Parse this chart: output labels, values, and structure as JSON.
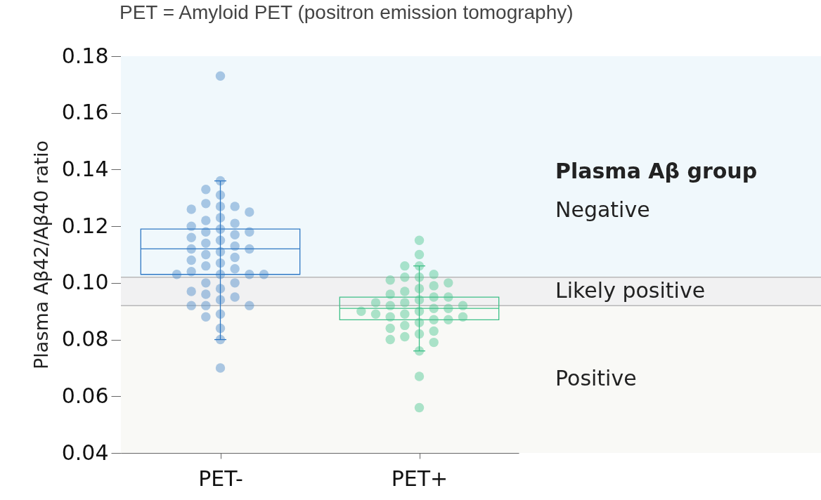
{
  "chart_data": {
    "type": "box",
    "title": "PET = Amyloid PET (positron emission tomography)",
    "ylabel": "Plasma Aβ42/Aβ40 ratio",
    "categories": [
      "PET-",
      "PET+"
    ],
    "colors": [
      "#2f78c4",
      "#3dbf87"
    ],
    "boxes": [
      {
        "low": 0.08,
        "q1": 0.103,
        "median": 0.112,
        "q3": 0.119,
        "high": 0.136
      },
      {
        "low": 0.076,
        "q1": 0.087,
        "median": 0.091,
        "q3": 0.095,
        "high": 0.106
      }
    ],
    "series": [
      {
        "type": "scatter",
        "color": "#5b93cc",
        "x": [
          "PET-",
          "PET-",
          "PET-",
          "PET-",
          "PET-",
          "PET-",
          "PET-",
          "PET-",
          "PET-",
          "PET-",
          "PET-",
          "PET-",
          "PET-",
          "PET-",
          "PET-",
          "PET-",
          "PET-",
          "PET-",
          "PET-",
          "PET-",
          "PET-",
          "PET-",
          "PET-",
          "PET-",
          "PET-",
          "PET-",
          "PET-",
          "PET-",
          "PET-",
          "PET-",
          "PET-",
          "PET-",
          "PET-",
          "PET-",
          "PET-",
          "PET-",
          "PET-",
          "PET-",
          "PET-",
          "PET-",
          "PET-",
          "PET-",
          "PET-",
          "PET-",
          "PET-",
          "PET-",
          "PET-",
          "PET-",
          "PET-",
          "PET-"
        ],
        "values": [
          0.173,
          0.136,
          0.133,
          0.131,
          0.128,
          0.127,
          0.127,
          0.126,
          0.125,
          0.123,
          0.122,
          0.121,
          0.12,
          0.119,
          0.118,
          0.118,
          0.117,
          0.116,
          0.115,
          0.114,
          0.113,
          0.112,
          0.112,
          0.111,
          0.11,
          0.109,
          0.108,
          0.107,
          0.106,
          0.105,
          0.104,
          0.103,
          0.103,
          0.103,
          0.103,
          0.1,
          0.1,
          0.098,
          0.097,
          0.096,
          0.095,
          0.094,
          0.092,
          0.092,
          0.092,
          0.089,
          0.088,
          0.084,
          0.08,
          0.07
        ]
      },
      {
        "type": "scatter",
        "color": "#5ccb9a",
        "x": [
          "PET+",
          "PET+",
          "PET+",
          "PET+",
          "PET+",
          "PET+",
          "PET+",
          "PET+",
          "PET+",
          "PET+",
          "PET+",
          "PET+",
          "PET+",
          "PET+",
          "PET+",
          "PET+",
          "PET+",
          "PET+",
          "PET+",
          "PET+",
          "PET+",
          "PET+",
          "PET+",
          "PET+",
          "PET+",
          "PET+",
          "PET+",
          "PET+",
          "PET+",
          "PET+",
          "PET+",
          "PET+",
          "PET+",
          "PET+",
          "PET+",
          "PET+",
          "PET+",
          "PET+",
          "PET+",
          "PET+",
          "PET+"
        ],
        "values": [
          0.115,
          0.11,
          0.106,
          0.106,
          0.103,
          0.102,
          0.102,
          0.101,
          0.1,
          0.099,
          0.098,
          0.097,
          0.096,
          0.095,
          0.095,
          0.094,
          0.093,
          0.093,
          0.092,
          0.092,
          0.091,
          0.091,
          0.09,
          0.09,
          0.089,
          0.089,
          0.088,
          0.088,
          0.087,
          0.087,
          0.086,
          0.085,
          0.084,
          0.083,
          0.082,
          0.081,
          0.08,
          0.079,
          0.076,
          0.067,
          0.056
        ]
      }
    ],
    "marker": "circle",
    "ylim": [
      0.04,
      0.18
    ],
    "yticks": [
      0.04,
      0.06,
      0.08,
      {
        "value": 0.1,
        "label": "0.10"
      },
      0.12,
      0.14,
      0.16,
      0.18
    ],
    "ref_lines": [
      {
        "axis": "y",
        "value": 0.102,
        "color": "#b8b8b8"
      },
      {
        "axis": "y",
        "value": 0.092,
        "color": "#b8b8b8"
      }
    ],
    "bands": [
      {
        "axis": "y",
        "from": 0.102,
        "to": 0.18,
        "label": "Negative",
        "color": "#f0f8fc"
      },
      {
        "axis": "y",
        "from": 0.092,
        "to": 0.102,
        "label": "Likely positive",
        "color": "#f1f1f2"
      },
      {
        "axis": "y",
        "from": 0.04,
        "to": 0.092,
        "label": "Positive",
        "color": "#f9f9f6"
      }
    ],
    "annotations": [
      "Plasma Aβ group"
    ]
  }
}
